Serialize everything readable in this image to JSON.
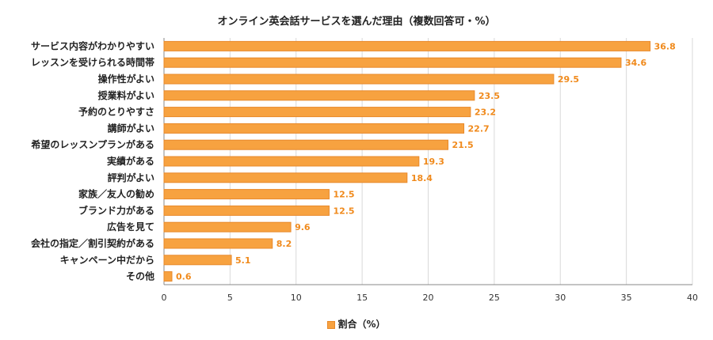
{
  "chart_data": {
    "type": "bar",
    "orientation": "horizontal",
    "title": "オンライン英会話サービスを選んだ理由（複数回答可・%）",
    "categories": [
      "サービス内容がわかりやすい",
      "レッスンを受けられる時間帯",
      "操作性がよい",
      "授業料がよい",
      "予約のとりやすさ",
      "講師がよい",
      "希望のレッスンプランがある",
      "実績がある",
      "評判がよい",
      "家族／友人の勧め",
      "ブランド力がある",
      "広告を見て",
      "会社の指定／割引契約がある",
      "キャンペーン中だから",
      "その他"
    ],
    "series": [
      {
        "name": "割合（%）",
        "values": [
          36.8,
          34.6,
          29.5,
          23.5,
          23.2,
          22.7,
          21.5,
          19.3,
          18.4,
          12.5,
          12.5,
          9.6,
          8.2,
          5.1,
          0.6
        ],
        "labels": [
          "36.8",
          "34.6",
          "29.5",
          "23.5",
          "23.2",
          "22.7",
          "21.5",
          "19.3",
          "18.4",
          "12.5",
          "12.5",
          "9.6",
          "8.2",
          "5.1",
          "0.6"
        ]
      }
    ],
    "xlim": [
      0,
      40
    ],
    "xticks": [
      "0",
      "5",
      "10",
      "15",
      "20",
      "25",
      "30",
      "35",
      "40"
    ],
    "grid": true,
    "legend_position": "bottom",
    "colors": {
      "bar": "#f7a240",
      "bar_border": "#e8892a",
      "value_label": "#f08a1c",
      "grid": "#d9d9d9"
    }
  }
}
